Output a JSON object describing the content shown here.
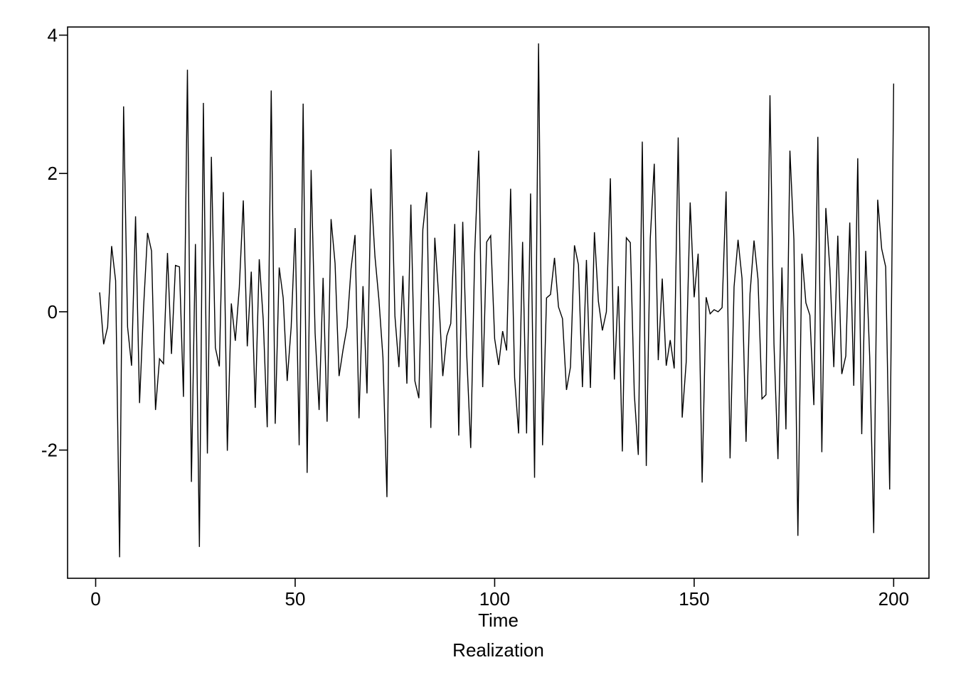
{
  "chart_data": {
    "type": "line",
    "title": "",
    "xlabel": "Time",
    "ylabel": "",
    "caption": "Realization",
    "xlim": [
      -7.04,
      208.85
    ],
    "ylim": [
      -3.854,
      4.118
    ],
    "xticks": [
      0,
      50,
      100,
      150,
      200
    ],
    "yticks": [
      -2,
      0,
      2,
      4
    ],
    "xtick_labels": [
      "0",
      "50",
      "100",
      "150",
      "200"
    ],
    "ytick_labels": [
      "-2",
      "0",
      "2",
      "4"
    ],
    "grid": false,
    "legend": "none",
    "line_color": "#000000",
    "series": [
      {
        "x": [
          1,
          2,
          3,
          4,
          5,
          6,
          7,
          8,
          9,
          10,
          11,
          12,
          13,
          14,
          15,
          16,
          17,
          18,
          19,
          20,
          21,
          22,
          23,
          24,
          25,
          26,
          27,
          28,
          29,
          30,
          31,
          32,
          33,
          34,
          35,
          36,
          37,
          38,
          39,
          40,
          41,
          42,
          43,
          44,
          45,
          46,
          47,
          48,
          49,
          50,
          51,
          52,
          53,
          54,
          55,
          56,
          57,
          58,
          59,
          60,
          61,
          62,
          63,
          64,
          65,
          66,
          67,
          68,
          69,
          70,
          71,
          72,
          73,
          74,
          75,
          76,
          77,
          78,
          79,
          80,
          81,
          82,
          83,
          84,
          85,
          86,
          87,
          88,
          89,
          90,
          91,
          92,
          93,
          94,
          95,
          96,
          97,
          98,
          99,
          100,
          101,
          102,
          103,
          104,
          105,
          106,
          107,
          108,
          109,
          110,
          111,
          112,
          113,
          114,
          115,
          116,
          117,
          118,
          119,
          120,
          121,
          122,
          123,
          124,
          125,
          126,
          127,
          128,
          129,
          130,
          131,
          132,
          133,
          134,
          135,
          136,
          137,
          138,
          139,
          140,
          141,
          142,
          143,
          144,
          145,
          146,
          147,
          148,
          149,
          150,
          151,
          152,
          153,
          154,
          155,
          156,
          157,
          158,
          159,
          160,
          161,
          162,
          163,
          164,
          165,
          166,
          167,
          168,
          169,
          170,
          171,
          172,
          173,
          174,
          175,
          176,
          177,
          178,
          179,
          180,
          181,
          182,
          183,
          184,
          185,
          186,
          187,
          188,
          189,
          190,
          191,
          192,
          193,
          194,
          195,
          196,
          197,
          198,
          199,
          200
        ],
        "values": [
          0.28,
          -0.47,
          -0.22,
          0.95,
          0.45,
          -3.55,
          2.97,
          -0.22,
          -0.78,
          1.38,
          -1.32,
          0.05,
          1.14,
          0.88,
          -1.42,
          -0.68,
          -0.75,
          0.85,
          -0.61,
          0.67,
          0.65,
          -1.23,
          3.5,
          -2.46,
          0.98,
          -3.4,
          3.02,
          -2.05,
          2.24,
          -0.52,
          -0.79,
          1.73,
          -2.01,
          0.12,
          -0.42,
          0.35,
          1.61,
          -0.5,
          0.58,
          -1.39,
          0.76,
          -0.12,
          -1.67,
          3.2,
          -1.62,
          0.64,
          0.2,
          -1.0,
          -0.22,
          1.21,
          -1.93,
          3.01,
          -2.33,
          2.05,
          -0.31,
          -1.42,
          0.49,
          -1.59,
          1.34,
          0.7,
          -0.93,
          -0.55,
          -0.22,
          0.62,
          1.11,
          -1.54,
          0.37,
          -1.18,
          1.78,
          0.8,
          0.17,
          -0.66,
          -2.68,
          2.35,
          -0.06,
          -0.8,
          0.52,
          -1.04,
          1.55,
          -1.0,
          -1.25,
          1.19,
          1.73,
          -1.68,
          1.07,
          0.2,
          -0.93,
          -0.35,
          -0.17,
          1.27,
          -1.79,
          1.3,
          -0.62,
          -1.97,
          0.85,
          2.33,
          -1.09,
          1.01,
          1.1,
          -0.39,
          -0.77,
          -0.28,
          -0.56,
          1.78,
          -0.95,
          -1.76,
          1.01,
          -1.76,
          1.71,
          -2.4,
          3.88,
          -1.93,
          0.2,
          0.25,
          0.78,
          0.07,
          -0.1,
          -1.13,
          -0.8,
          0.96,
          0.68,
          -1.09,
          0.75,
          -1.1,
          1.15,
          0.15,
          -0.27,
          0.0,
          1.93,
          -0.98,
          0.37,
          -2.02,
          1.07,
          1.0,
          -1.19,
          -2.07,
          2.46,
          -2.23,
          1.06,
          2.14,
          -0.7,
          0.48,
          -0.78,
          -0.41,
          -0.82,
          2.52,
          -1.53,
          -0.73,
          1.58,
          0.21,
          0.84,
          -2.47,
          0.21,
          -0.03,
          0.03,
          0.0,
          0.06,
          1.74,
          -2.12,
          0.36,
          1.04,
          0.48,
          -1.88,
          0.26,
          1.03,
          0.47,
          -1.26,
          -1.2,
          3.13,
          -0.46,
          -2.13,
          0.64,
          -1.7,
          2.33,
          1.04,
          -3.24,
          0.84,
          0.13,
          -0.05,
          -1.35,
          2.53,
          -2.03,
          1.5,
          0.63,
          -0.8,
          1.1,
          -0.9,
          -0.64,
          1.29,
          -1.07,
          2.22,
          -1.77,
          0.88,
          -0.66,
          -3.2,
          1.62,
          0.91,
          0.65,
          -2.57,
          3.3
        ]
      }
    ]
  }
}
